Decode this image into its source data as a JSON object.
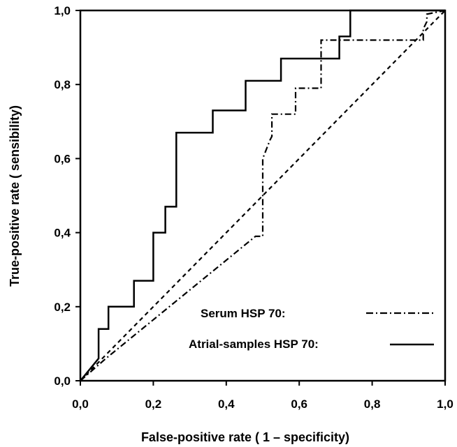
{
  "chart_data": {
    "type": "line",
    "title": "",
    "xlabel": "False-positive rate ( 1 – specificity)",
    "ylabel": "True-positive rate ( sensibility)",
    "xlim": [
      0,
      1
    ],
    "ylim": [
      0,
      1
    ],
    "xticks": [
      "0,0",
      "0,2",
      "0,4",
      "0,6",
      "0,8",
      "1,0"
    ],
    "yticks": [
      "0,0",
      "0,2",
      "0,4",
      "0,6",
      "0,8",
      "1,0"
    ],
    "grid": false,
    "legend_position": "bottom-right",
    "series": [
      {
        "name": "Serum HSP 70:",
        "style": "dash-dot",
        "color": "#000000",
        "x": [
          0.0,
          0.07,
          0.48,
          0.5,
          0.5,
          0.52,
          0.525,
          0.525,
          0.54,
          0.57,
          0.59,
          0.59,
          0.64,
          0.66,
          0.66,
          0.94,
          0.94,
          0.95,
          0.95,
          1.0
        ],
        "y": [
          0.0,
          0.06,
          0.39,
          0.39,
          0.6,
          0.65,
          0.66,
          0.72,
          0.72,
          0.72,
          0.72,
          0.79,
          0.79,
          0.79,
          0.92,
          0.92,
          0.95,
          0.97,
          0.99,
          1.0
        ]
      },
      {
        "name": "Atrial-samples HSP 70:",
        "style": "solid",
        "color": "#000000",
        "x": [
          0.0,
          0.05,
          0.05,
          0.077,
          0.077,
          0.147,
          0.147,
          0.2,
          0.2,
          0.233,
          0.233,
          0.263,
          0.263,
          0.363,
          0.363,
          0.453,
          0.453,
          0.55,
          0.55,
          0.71,
          0.71,
          0.74,
          0.74,
          0.99,
          1.0
        ],
        "y": [
          0.0,
          0.06,
          0.14,
          0.14,
          0.2,
          0.2,
          0.27,
          0.27,
          0.4,
          0.4,
          0.47,
          0.47,
          0.67,
          0.67,
          0.73,
          0.73,
          0.81,
          0.81,
          0.87,
          0.87,
          0.93,
          0.93,
          1.0,
          1.0,
          1.0
        ]
      },
      {
        "name": "",
        "style": "dashed",
        "color": "#000000",
        "x": [
          0.0,
          1.0
        ],
        "y": [
          0.0,
          1.0
        ]
      }
    ]
  }
}
